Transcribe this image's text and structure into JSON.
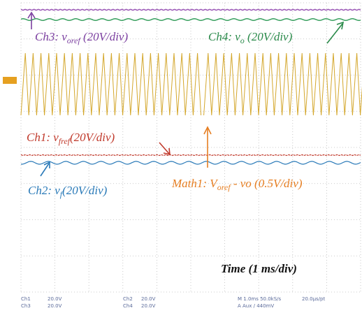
{
  "labels": {
    "ch3": {
      "pre": "Ch3: v",
      "sub": "oref",
      "post": " (20V/div)"
    },
    "ch4": {
      "pre": "Ch4: v",
      "sub": "o",
      "post": " (20V/div)"
    },
    "ch1": {
      "pre": "Ch1: v",
      "sub": "fref",
      "post": "(20V/div)"
    },
    "ch2": {
      "pre": "Ch2: v",
      "sub": "f",
      "post": "(20V/div)"
    },
    "math1": "Math1: V",
    "math1_sub": "oref",
    "math1_post": " - vo (0.5V/div)",
    "time": "Time (1 ms/div)"
  },
  "status": {
    "ch1": "Ch1",
    "ch1_scale": "20.0V",
    "ch3": "Ch3",
    "ch3_scale": "20.0V",
    "ch2": "Ch2",
    "ch2_scale": "20.0V",
    "ch4": "Ch4",
    "ch4_scale": "20.0V",
    "timebase": "M 1.0ms 50.0kS/s",
    "resolution": "20.0µs/pt",
    "trigger": "A Aux / 440mV"
  }
}
